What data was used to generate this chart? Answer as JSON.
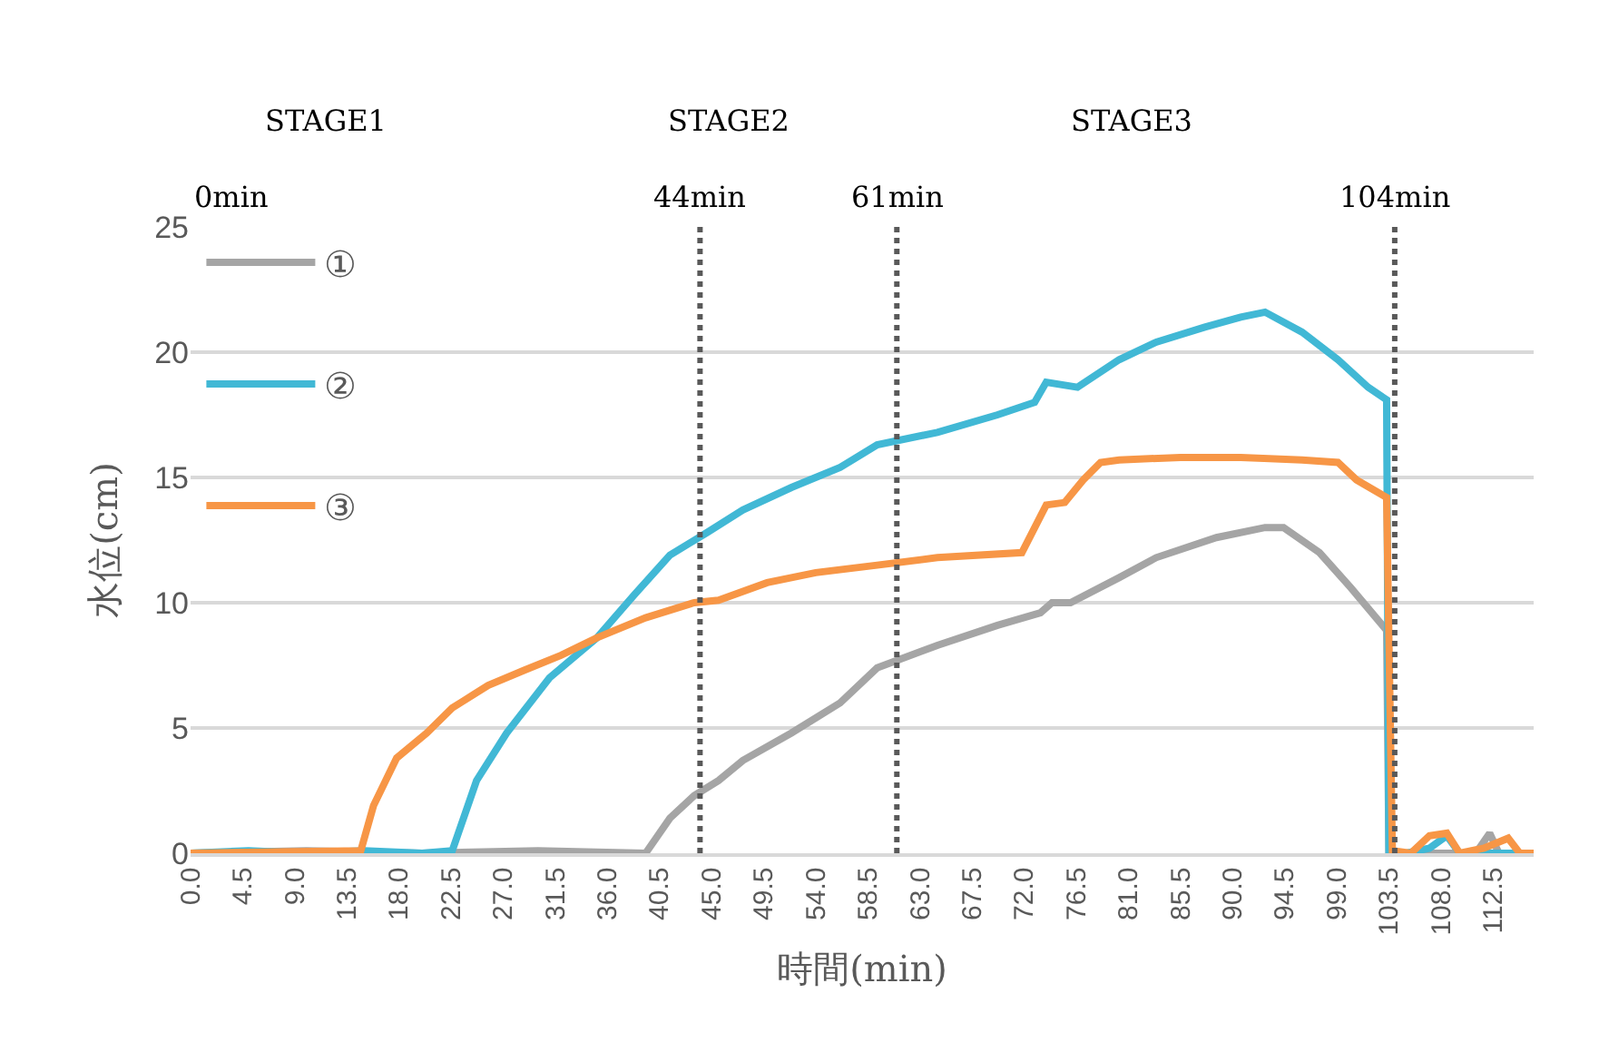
{
  "chart_data": {
    "type": "line",
    "xlabel": "時間(min)",
    "ylabel": "水位(cm)",
    "xlim": [
      0,
      116
    ],
    "ylim": [
      0,
      25
    ],
    "yticks": [
      0,
      5,
      10,
      15,
      20,
      25
    ],
    "xticks": [
      {
        "value": 0,
        "label": "0.0"
      },
      4.5,
      {
        "value": 9,
        "label": "9.0"
      },
      13.5,
      {
        "value": 18,
        "label": "18.0"
      },
      22.5,
      {
        "value": 27,
        "label": "27.0"
      },
      31.5,
      {
        "value": 36,
        "label": "36.0"
      },
      40.5,
      {
        "value": 45,
        "label": "45.0"
      },
      49.5,
      {
        "value": 54,
        "label": "54.0"
      },
      58.5,
      {
        "value": 63,
        "label": "63.0"
      },
      67.5,
      {
        "value": 72,
        "label": "72.0"
      },
      76.5,
      {
        "value": 81,
        "label": "81.0"
      },
      85.5,
      {
        "value": 90,
        "label": "90.0"
      },
      94.5,
      {
        "value": 99,
        "label": "99.0"
      },
      103.5,
      {
        "value": 108,
        "label": "108.0"
      },
      112.5
    ],
    "grid": "y",
    "legend": "top left",
    "marker": "none",
    "line_style": "solid",
    "series": [
      {
        "name": "①",
        "color": "#a5a5a5",
        "x": [
          0,
          10,
          20,
          30,
          39.3,
          41.4,
          43.5,
          45.6,
          47.7,
          51.9,
          56.1,
          59.3,
          64.5,
          69.7,
          73.4,
          74.4,
          76,
          80.2,
          83.4,
          88.6,
          92.8,
          94.4,
          97.5,
          100.2,
          103.3,
          103.5,
          108,
          111,
          112.2,
          113,
          116
        ],
        "values": [
          0,
          0.1,
          0,
          0.1,
          0,
          1.4,
          2.3,
          2.9,
          3.7,
          4.8,
          6,
          7.4,
          8.3,
          9.1,
          9.6,
          10,
          10,
          11,
          11.8,
          12.6,
          13,
          13,
          12,
          10.6,
          8.9,
          0,
          0,
          0,
          0.8,
          0,
          0
        ]
      },
      {
        "name": "②",
        "color": "#41b8d5",
        "x": [
          0,
          5,
          10,
          15,
          20,
          22.6,
          24.7,
          27.3,
          31,
          35.1,
          38.3,
          41.4,
          44.6,
          47.7,
          51.9,
          56.1,
          59.3,
          64.5,
          69.7,
          72.9,
          73.9,
          76.6,
          80.2,
          83.4,
          87.6,
          90.7,
          92.8,
          96,
          99.1,
          101.7,
          103.3,
          103.5,
          105,
          107,
          108.5,
          109.6,
          116
        ],
        "values": [
          0,
          0.1,
          0,
          0.1,
          0,
          0.1,
          2.9,
          4.8,
          7,
          8.6,
          10.3,
          11.9,
          12.8,
          13.7,
          14.6,
          15.4,
          16.3,
          16.8,
          17.5,
          18,
          18.8,
          18.6,
          19.7,
          20.4,
          21,
          21.4,
          21.6,
          20.8,
          19.7,
          18.6,
          18.1,
          0,
          0,
          0.2,
          0.7,
          0,
          0
        ]
      },
      {
        "name": "③",
        "color": "#f79646",
        "x": [
          0,
          14.7,
          15.8,
          17.8,
          20.4,
          22.6,
          25.7,
          28.8,
          32,
          35.1,
          39.3,
          43.5,
          45.6,
          49.8,
          54,
          59.3,
          64.5,
          71.8,
          73.9,
          75.5,
          77.1,
          78.6,
          80.2,
          85.5,
          90.7,
          96,
          99.1,
          100.7,
          103.3,
          103.8,
          105.4,
          107,
          108.5,
          109.6,
          111.7,
          113.8,
          114.8,
          116
        ],
        "values": [
          0,
          0.1,
          1.9,
          3.8,
          4.8,
          5.8,
          6.7,
          7.3,
          7.9,
          8.6,
          9.4,
          10,
          10.1,
          10.8,
          11.2,
          11.5,
          11.8,
          12,
          13.9,
          14,
          14.9,
          15.6,
          15.7,
          15.8,
          15.8,
          15.7,
          15.6,
          14.9,
          14.2,
          0.1,
          0,
          0.7,
          0.8,
          0,
          0.2,
          0.6,
          0,
          0
        ]
      }
    ],
    "ref_lines": [
      {
        "axis": "x",
        "value": 44,
        "label": "44min",
        "color": "#595959",
        "line_style": "dotted"
      },
      {
        "axis": "x",
        "value": 61,
        "label": "61min",
        "color": "#595959",
        "line_style": "dotted"
      },
      {
        "axis": "x",
        "value": 104,
        "label": "104min",
        "color": "#595959",
        "line_style": "dotted"
      }
    ],
    "annotations": [
      "0min",
      "STAGE1",
      "STAGE2",
      "STAGE3"
    ]
  }
}
